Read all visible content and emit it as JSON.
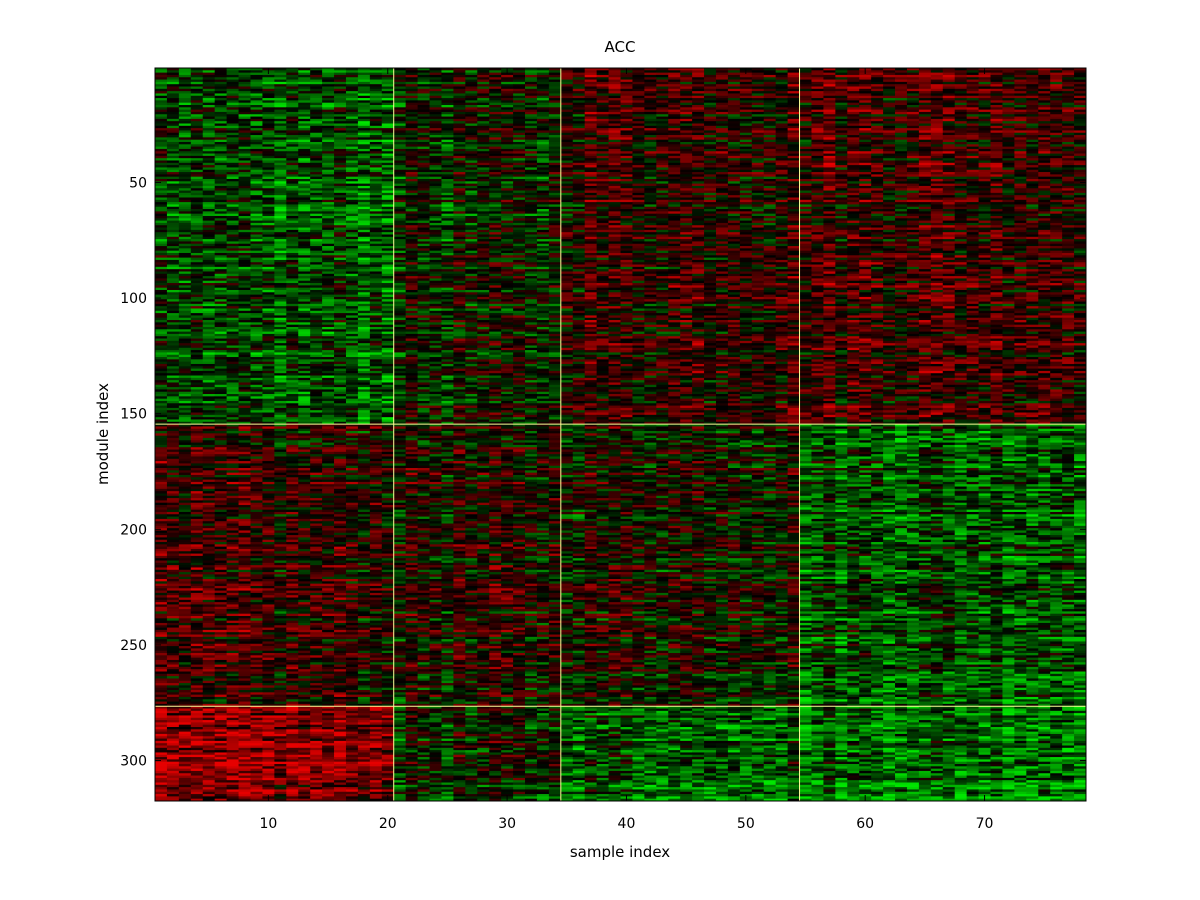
{
  "chart_data": {
    "type": "heatmap",
    "title": "ACC",
    "xlabel": "sample index",
    "ylabel": "module index",
    "n_samples": 78,
    "n_modules": 317,
    "xlim": [
      0.5,
      78.5
    ],
    "ylim": [
      0.5,
      317.5
    ],
    "y_reversed": true,
    "xticks": [
      10,
      20,
      30,
      40,
      50,
      60,
      70
    ],
    "yticks": [
      50,
      100,
      150,
      200,
      250,
      300
    ],
    "colormap": {
      "low": "#00ff00",
      "mid": "#000000",
      "high": "#ff0000"
    },
    "value_range": [
      -1,
      1
    ],
    "separator_color": "#ffff99",
    "sample_group_boundaries": [
      20.5,
      34.5,
      54.5
    ],
    "module_group_boundaries": [
      154.5,
      276.5
    ],
    "block_mean_values": {
      "description_rows": "module groups 1-154, 155-276, 277-317",
      "description_cols": "sample groups 1-20, 21-34, 35-54, 55-78",
      "values": [
        [
          -0.35,
          -0.1,
          0.2,
          0.25
        ],
        [
          0.15,
          0.05,
          0.05,
          -0.3
        ],
        [
          0.55,
          -0.1,
          -0.35,
          -0.45
        ]
      ]
    },
    "grid": false,
    "legend": false
  }
}
